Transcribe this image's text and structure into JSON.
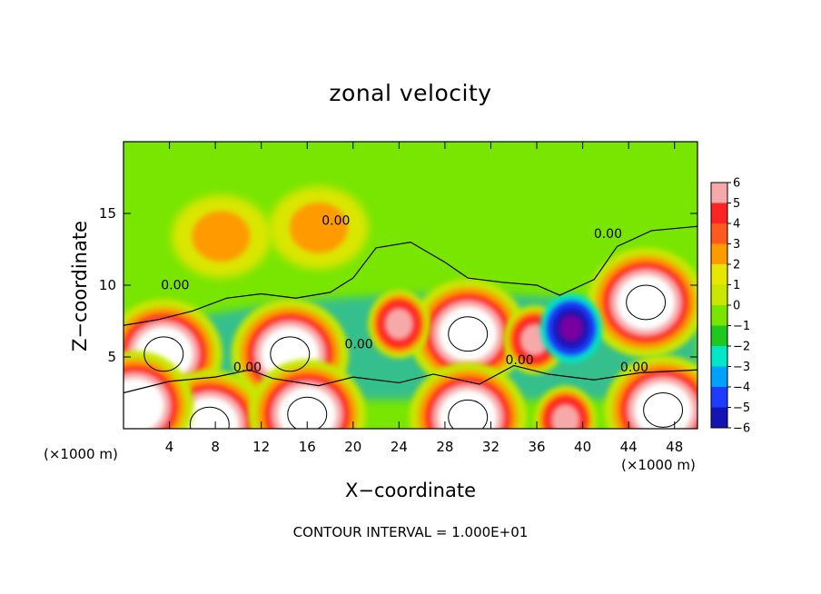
{
  "chart_data": {
    "type": "heatmap",
    "title": "zonal velocity",
    "xlabel": "X−coordinate",
    "ylabel": "Z−coordinate",
    "x_unit_label": "(×1000 m)",
    "y_unit_label": "(×1000 m)",
    "footer": "CONTOUR INTERVAL = 1.000E+01",
    "xlim": [
      0,
      50
    ],
    "ylim": [
      0,
      20
    ],
    "x_ticks": [
      4,
      8,
      12,
      16,
      20,
      24,
      28,
      32,
      36,
      40,
      44,
      48
    ],
    "y_ticks": [
      5,
      10,
      15
    ],
    "colorbar": {
      "levels": [
        "6",
        "5",
        "4",
        "3",
        "2",
        "1",
        "0",
        "−1",
        "−2",
        "−3",
        "−4",
        "−5",
        "−6"
      ],
      "colors": [
        "#f7a8a8",
        "#ff2424",
        "#ff5a1e",
        "#ff9a00",
        "#e6e600",
        "#c8e600",
        "#78e600",
        "#1ec81e",
        "#00e6c8",
        "#00a0ff",
        "#1e3cff",
        "#1414b4",
        "#7800a0"
      ]
    },
    "contour_labels": [
      {
        "text": "0.00",
        "x": 18.5,
        "y": 14.2
      },
      {
        "text": "0.00",
        "x": 4.5,
        "y": 9.7
      },
      {
        "text": "0.00",
        "x": 20.5,
        "y": 5.6
      },
      {
        "text": "0.00",
        "x": 10.8,
        "y": 4.0
      },
      {
        "text": "0.00",
        "x": 34.5,
        "y": 4.5
      },
      {
        "text": "0.00",
        "x": 42.2,
        "y": 13.3
      },
      {
        "text": "0.00",
        "x": 44.5,
        "y": 4.0
      }
    ],
    "features": [
      {
        "kind": "max",
        "x": 3.5,
        "y": 5.2,
        "value": 10
      },
      {
        "kind": "max",
        "x": 14.5,
        "y": 5.2,
        "value": 10
      },
      {
        "kind": "max",
        "x": 30,
        "y": 6.6,
        "value": 10
      },
      {
        "kind": "max",
        "x": 45.5,
        "y": 8.8,
        "value": 10
      },
      {
        "kind": "max",
        "x": 35.8,
        "y": 6.2,
        "value": 6
      },
      {
        "kind": "max",
        "x": 24,
        "y": 7.3,
        "value": 6
      },
      {
        "kind": "min",
        "x": 39,
        "y": 7.0,
        "value": -6
      },
      {
        "kind": "max",
        "x": 7.5,
        "y": 0.3,
        "value": 10
      },
      {
        "kind": "max",
        "x": 16,
        "y": 1.0,
        "value": 10
      },
      {
        "kind": "max",
        "x": 30,
        "y": 0.8,
        "value": 10
      },
      {
        "kind": "max",
        "x": 47,
        "y": 1.3,
        "value": 10
      },
      {
        "kind": "max",
        "x": 1,
        "y": 1.6,
        "value": 8
      },
      {
        "kind": "max",
        "x": 38.5,
        "y": 0.6,
        "value": 6
      },
      {
        "kind": "max",
        "x": 17,
        "y": 14,
        "value": 3
      },
      {
        "kind": "max",
        "x": 8.5,
        "y": 13.4,
        "value": 3
      }
    ]
  }
}
